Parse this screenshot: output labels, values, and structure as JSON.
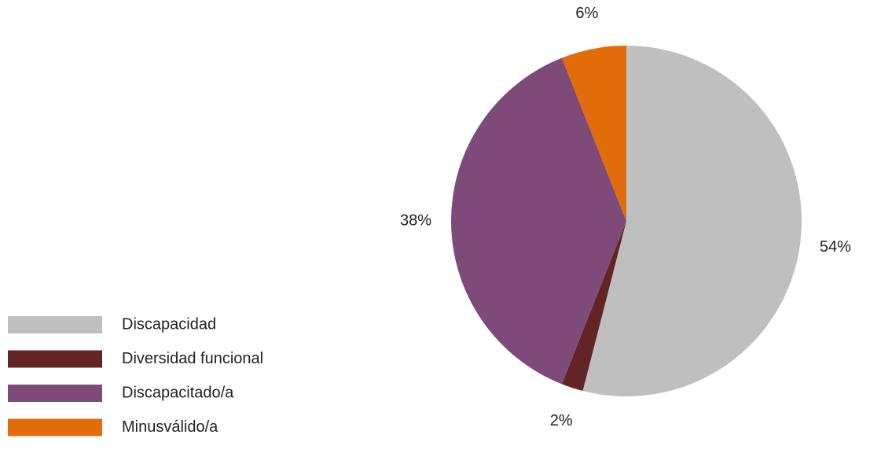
{
  "chart_data": {
    "type": "pie",
    "categories": [
      "Discapacidad",
      "Diversidad funcional",
      "Discapacitado/a",
      "Minusválido/a"
    ],
    "values": [
      54,
      2,
      38,
      6
    ],
    "value_labels": [
      "54%",
      "2%",
      "38%",
      "6%"
    ],
    "colors": [
      "#bfbfbf",
      "#622424",
      "#7d4a7a",
      "#e36c0a"
    ],
    "legend": "bottom-left"
  }
}
